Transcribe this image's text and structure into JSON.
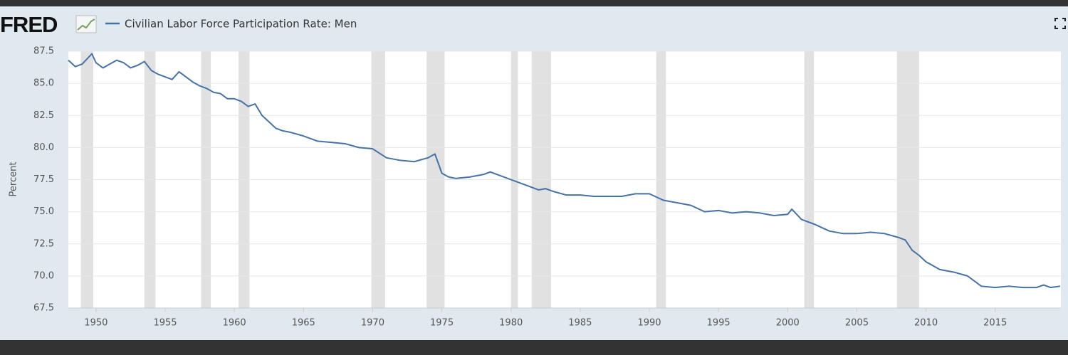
{
  "header": {
    "logo": "FRED"
  },
  "chart_data": {
    "type": "line",
    "title": "Civilian Labor Force Participation Rate: Men",
    "y_label": "Percent",
    "xlim": [
      1948,
      2019.75
    ],
    "xticks": [
      1950,
      1955,
      1960,
      1965,
      1970,
      1975,
      1980,
      1985,
      1990,
      1995,
      2000,
      2005,
      2010,
      2015
    ],
    "ylim": [
      67.5,
      87.5
    ],
    "yticks": [
      67.5,
      {
        "value": 70,
        "label": "70.0"
      },
      72.5,
      {
        "value": 75,
        "label": "75.0"
      },
      77.5,
      {
        "value": 80,
        "label": "80.0"
      },
      82.5,
      {
        "value": 85,
        "label": "85.0"
      },
      87.5
    ],
    "grid": true,
    "recessions": [
      [
        1948.9,
        1949.8
      ],
      [
        1953.5,
        1954.3
      ],
      [
        1957.6,
        1958.3
      ],
      [
        1960.3,
        1961.1
      ],
      [
        1969.9,
        1970.9
      ],
      [
        1973.9,
        1975.2
      ],
      [
        1980.0,
        1980.5
      ],
      [
        1981.5,
        1982.9
      ],
      [
        1990.5,
        1991.2
      ],
      [
        2001.2,
        2001.9
      ],
      [
        2007.9,
        2009.5
      ]
    ],
    "recession_color": "#e1e1e1",
    "x": [
      1948,
      1948.5,
      1949,
      1949.7,
      1950,
      1950.5,
      1951,
      1951.5,
      1952,
      1952.5,
      1953,
      1953.5,
      1954,
      1954.5,
      1955,
      1955.5,
      1956,
      1956.5,
      1957,
      1957.5,
      1958,
      1958.5,
      1959,
      1959.5,
      1960,
      1960.5,
      1961,
      1961.5,
      1962,
      1962.5,
      1963,
      1963.5,
      1964,
      1965,
      1966,
      1967,
      1968,
      1969,
      1970,
      1971,
      1972,
      1973,
      1974,
      1974.5,
      1975,
      1975.5,
      1976,
      1977,
      1978,
      1978.5,
      1979,
      1980,
      1981,
      1982,
      1982.5,
      1983,
      1984,
      1985,
      1986,
      1987,
      1988,
      1989,
      1990,
      1991,
      1992,
      1993,
      1994,
      1995,
      1996,
      1997,
      1998,
      1999,
      2000,
      2000.3,
      2001,
      2002,
      2003,
      2004,
      2005,
      2006,
      2007,
      2008,
      2008.5,
      2009,
      2009.5,
      2010,
      2011,
      2012,
      2013,
      2014,
      2015,
      2016,
      2017,
      2018,
      2018.5,
      2019,
      2019.7
    ],
    "series": [
      {
        "name": "Civilian Labor Force Participation Rate: Men",
        "color": "#4572a7",
        "values": [
          86.8,
          86.3,
          86.5,
          87.3,
          86.6,
          86.2,
          86.5,
          86.8,
          86.6,
          86.2,
          86.4,
          86.7,
          86.0,
          85.7,
          85.5,
          85.3,
          85.9,
          85.5,
          85.1,
          84.8,
          84.6,
          84.3,
          84.2,
          83.8,
          83.8,
          83.6,
          83.2,
          83.4,
          82.5,
          82.0,
          81.5,
          81.3,
          81.2,
          80.9,
          80.5,
          80.4,
          80.3,
          80.0,
          79.9,
          79.2,
          79.0,
          78.9,
          79.2,
          79.5,
          78.0,
          77.7,
          77.6,
          77.7,
          77.9,
          78.1,
          77.9,
          77.5,
          77.1,
          76.7,
          76.8,
          76.6,
          76.3,
          76.3,
          76.2,
          76.2,
          76.2,
          76.4,
          76.4,
          75.9,
          75.7,
          75.5,
          75.0,
          75.1,
          74.9,
          75.0,
          74.9,
          74.7,
          74.8,
          75.2,
          74.4,
          74.0,
          73.5,
          73.3,
          73.3,
          73.4,
          73.3,
          73.0,
          72.8,
          72.0,
          71.6,
          71.1,
          70.5,
          70.3,
          70.0,
          69.2,
          69.1,
          69.2,
          69.1,
          69.1,
          69.3,
          69.1,
          69.2
        ]
      }
    ]
  }
}
